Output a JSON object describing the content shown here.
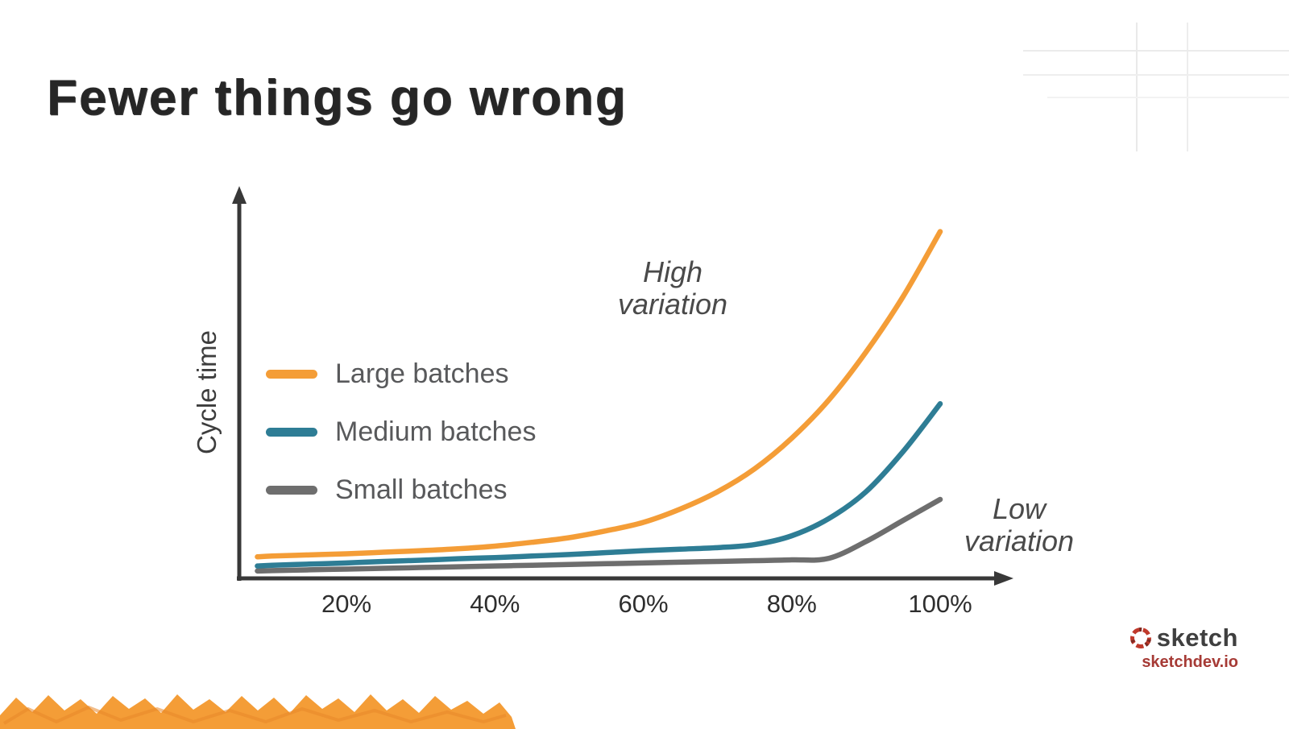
{
  "slide": {
    "title": "Fewer things go wrong"
  },
  "chart": {
    "y_axis_label": "Cycle time",
    "annotations": {
      "high": "High\nvariation",
      "low": "Low\nvariation"
    }
  },
  "footer": {
    "brand": "sketch",
    "domain": "sketchdev.io"
  },
  "chart_data": {
    "type": "line",
    "title": "Fewer things go wrong",
    "xlabel": "",
    "ylabel": "Cycle time",
    "x_unit": "percent utilization",
    "xlim": [
      0,
      105
    ],
    "ylim": [
      0,
      100
    ],
    "grid": false,
    "legend_position": "middle-left",
    "x_tick_values": [
      20,
      40,
      60,
      80,
      100
    ],
    "x_tick_labels": [
      "20%",
      "40%",
      "60%",
      "80%",
      "100%"
    ],
    "annotations": [
      "High variation",
      "Low variation"
    ],
    "x": [
      8,
      10,
      15,
      20,
      25,
      30,
      35,
      40,
      45,
      50,
      55,
      60,
      65,
      70,
      75,
      80,
      85,
      90,
      95,
      100
    ],
    "series": [
      {
        "name": "Large batches",
        "color": "#F49D37",
        "values": [
          5.0,
          5.2,
          5.5,
          5.8,
          6.2,
          6.6,
          7.1,
          7.8,
          8.8,
          10.0,
          11.8,
          14.0,
          17.5,
          22.0,
          28.0,
          36.0,
          46.0,
          58.5,
          73.0,
          90.0
        ]
      },
      {
        "name": "Medium batches",
        "color": "#2E7D95",
        "values": [
          2.6,
          2.8,
          3.1,
          3.4,
          3.8,
          4.1,
          4.5,
          4.8,
          5.2,
          5.6,
          6.1,
          6.6,
          7.0,
          7.4,
          8.2,
          10.5,
          15.0,
          22.0,
          32.5,
          45.0
        ]
      },
      {
        "name": "Small batches",
        "color": "#6E6E6E",
        "values": [
          1.3,
          1.4,
          1.6,
          1.8,
          2.0,
          2.2,
          2.4,
          2.6,
          2.8,
          3.0,
          3.2,
          3.4,
          3.6,
          3.8,
          4.0,
          4.2,
          4.6,
          9.0,
          14.5,
          20.0
        ]
      }
    ]
  }
}
